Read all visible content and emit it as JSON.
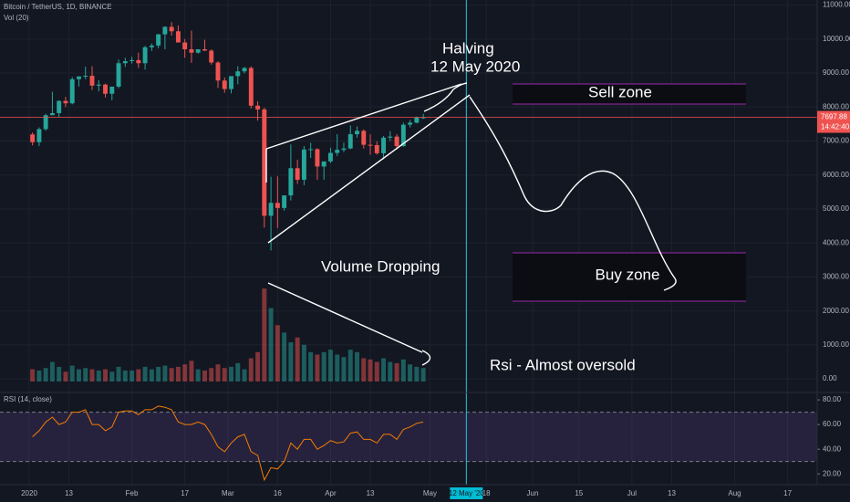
{
  "chart_data": [
    {
      "type": "candlestick",
      "title": "Bitcoin / TetherUS, 1D, BINANCE",
      "subtitle": "Vol (20)",
      "x": [
        "2020-01-01",
        "2020-01-03",
        "2020-01-05",
        "2020-01-07",
        "2020-01-09",
        "2020-01-11",
        "2020-01-13",
        "2020-01-15",
        "2020-01-17",
        "2020-01-19",
        "2020-01-21",
        "2020-01-23",
        "2020-01-25",
        "2020-01-27",
        "2020-01-29",
        "2020-01-31",
        "2020-02-02",
        "2020-02-04",
        "2020-02-06",
        "2020-02-08",
        "2020-02-10",
        "2020-02-12",
        "2020-02-14",
        "2020-02-16",
        "2020-02-18",
        "2020-02-20",
        "2020-02-22",
        "2020-02-24",
        "2020-02-26",
        "2020-02-28",
        "2020-03-01",
        "2020-03-03",
        "2020-03-05",
        "2020-03-07",
        "2020-03-09",
        "2020-03-11",
        "2020-03-13",
        "2020-03-15",
        "2020-03-17",
        "2020-03-19",
        "2020-03-21",
        "2020-03-23",
        "2020-03-25",
        "2020-03-27",
        "2020-03-29",
        "2020-03-31",
        "2020-04-02",
        "2020-04-04",
        "2020-04-06",
        "2020-04-08",
        "2020-04-10",
        "2020-04-12",
        "2020-04-14",
        "2020-04-16",
        "2020-04-18",
        "2020-04-20",
        "2020-04-22",
        "2020-04-24",
        "2020-04-26",
        "2020-04-28"
      ],
      "open": [
        7195,
        6965,
        7350,
        7760,
        7820,
        8180,
        8110,
        8820,
        8900,
        8920,
        8630,
        8660,
        8390,
        8600,
        9290,
        9350,
        9380,
        9290,
        9760,
        9810,
        10140,
        10360,
        10230,
        9900,
        9700,
        9600,
        9700,
        9660,
        9310,
        8780,
        8530,
        8910,
        9050,
        9150,
        8040,
        7930,
        4800,
        5180,
        5030,
        5400,
        6200,
        5860,
        6750,
        6760,
        6250,
        6400,
        6650,
        6740,
        6780,
        7200,
        7300,
        6890,
        6880,
        6640,
        7100,
        7130,
        6850,
        7480,
        7540,
        7690
      ],
      "high": [
        7255,
        7400,
        7800,
        8450,
        8200,
        8300,
        8880,
        8900,
        9190,
        9200,
        8790,
        8690,
        8570,
        9400,
        9450,
        9480,
        9600,
        9800,
        9870,
        10150,
        10380,
        10500,
        10400,
        10000,
        10250,
        9700,
        9980,
        9700,
        9350,
        8870,
        8800,
        9200,
        9180,
        9200,
        8170,
        7980,
        5950,
        5960,
        5400,
        6900,
        6450,
        6850,
        6950,
        6790,
        6350,
        6800,
        7200,
        6950,
        7460,
        7430,
        7340,
        7200,
        6990,
        7150,
        7290,
        7200,
        7540,
        7620,
        7720,
        7800
      ],
      "low": [
        6870,
        6850,
        7300,
        7760,
        7700,
        8000,
        8080,
        8600,
        8820,
        8500,
        8460,
        8280,
        8200,
        8550,
        9180,
        9280,
        9150,
        9100,
        9650,
        9730,
        9700,
        10100,
        9950,
        9450,
        9300,
        9570,
        9650,
        9250,
        8560,
        8420,
        8400,
        8670,
        8990,
        7960,
        7600,
        4450,
        3780,
        4440,
        4950,
        5250,
        5740,
        5700,
        6500,
        5860,
        5860,
        6350,
        6560,
        6670,
        6760,
        7100,
        6780,
        6600,
        6600,
        6460,
        7000,
        6750,
        6830,
        7400,
        7520,
        7650
      ],
      "close": [
        6965,
        7350,
        7760,
        7820,
        8180,
        8110,
        8820,
        8900,
        8920,
        8630,
        8660,
        8390,
        8600,
        9290,
        9350,
        9380,
        9290,
        9760,
        9810,
        10140,
        10360,
        10230,
        9900,
        9700,
        9600,
        9700,
        9660,
        9310,
        8780,
        8530,
        8910,
        9050,
        9150,
        8040,
        7930,
        4800,
        5180,
        5030,
        5400,
        6200,
        5860,
        6750,
        6760,
        6250,
        6400,
        6650,
        6740,
        6780,
        7200,
        7300,
        6890,
        6880,
        6640,
        7100,
        7130,
        6850,
        7480,
        7540,
        7690,
        7697.88
      ],
      "volume": [
        50000,
        45000,
        55000,
        80000,
        60000,
        40000,
        65000,
        50000,
        55000,
        50000,
        45000,
        50000,
        40000,
        60000,
        45000,
        45000,
        50000,
        60000,
        50000,
        60000,
        65000,
        55000,
        60000,
        70000,
        85000,
        50000,
        45000,
        55000,
        70000,
        55000,
        60000,
        75000,
        50000,
        95000,
        120000,
        380000,
        300000,
        230000,
        200000,
        160000,
        180000,
        150000,
        120000,
        110000,
        120000,
        130000,
        110000,
        100000,
        130000,
        120000,
        95000,
        90000,
        80000,
        95000,
        80000,
        75000,
        90000,
        70000,
        60000,
        55000
      ],
      "up_color": "#26a69a",
      "down_color": "#ef5350",
      "last_price": 7697.88,
      "countdown": "14:42:40",
      "xlim": [
        "2020-01-01",
        "2020-08-24"
      ],
      "xticks": [
        {
          "value": "2020-01-01",
          "label": "2020"
        },
        {
          "value": "2020-01-13",
          "label": "13"
        },
        {
          "value": "2020-02-01",
          "label": "Feb"
        },
        {
          "value": "2020-02-17",
          "label": "17"
        },
        {
          "value": "2020-03-01",
          "label": "Mar"
        },
        {
          "value": "2020-03-16",
          "label": "16"
        },
        {
          "value": "2020-04-01",
          "label": "Apr"
        },
        {
          "value": "2020-04-13",
          "label": "13"
        },
        {
          "value": "2020-05-01",
          "label": "May"
        },
        {
          "value": "2020-05-18",
          "label": "18"
        },
        {
          "value": "2020-06-01",
          "label": "Jun"
        },
        {
          "value": "2020-06-15",
          "label": "15"
        },
        {
          "value": "2020-07-01",
          "label": "Jul"
        },
        {
          "value": "2020-07-13",
          "label": "13"
        },
        {
          "value": "2020-08-01",
          "label": "Aug"
        },
        {
          "value": "2020-08-17",
          "label": "17"
        }
      ],
      "highlight": {
        "value": "2020-05-12",
        "label": "12 May '20"
      },
      "ylim": [
        -400,
        11150
      ],
      "yticks": [
        {
          "value": 0,
          "label": "0.00"
        },
        {
          "value": 1000,
          "label": "1000.00"
        },
        {
          "value": 2000,
          "label": "2000.00"
        },
        {
          "value": 3000,
          "label": "3000.00"
        },
        {
          "value": 4000,
          "label": "4000.00"
        },
        {
          "value": 5000,
          "label": "5000.00"
        },
        {
          "value": 6000,
          "label": "6000.00"
        },
        {
          "value": 7000,
          "label": "7000.00"
        },
        {
          "value": 8000,
          "label": "8000.00"
        },
        {
          "value": 9000,
          "label": "9000.00"
        },
        {
          "value": 10000,
          "label": "10000.00"
        },
        {
          "value": 11000,
          "label": "11000.00"
        }
      ],
      "volume_ylim": [
        0,
        440000
      ],
      "grid": true,
      "annotations": {
        "halving": "Halving",
        "halving_date": "12 May 2020",
        "sell": "Sell zone",
        "buy": "Buy zone",
        "volume": "Volume Dropping",
        "rsi": "Rsi - Almost oversold"
      }
    },
    {
      "type": "line",
      "title": "RSI (14, close)",
      "values": [
        50,
        55,
        62,
        66,
        60,
        62,
        70,
        70,
        72,
        60,
        60,
        55,
        58,
        70,
        71,
        71,
        68,
        72,
        72,
        75,
        74,
        72,
        62,
        60,
        60,
        62,
        60,
        52,
        42,
        38,
        45,
        50,
        52,
        38,
        35,
        15,
        25,
        24,
        30,
        45,
        40,
        48,
        48,
        40,
        43,
        47,
        45,
        46,
        53,
        54,
        48,
        48,
        45,
        52,
        52,
        48,
        56,
        58,
        61,
        62
      ],
      "color": "#f57c00",
      "band": [
        30,
        70
      ],
      "ylim": [
        12,
        86
      ],
      "yticks": [
        {
          "value": 20,
          "label": "20.00"
        },
        {
          "value": 40,
          "label": "40.00"
        },
        {
          "value": 60,
          "label": "60.00"
        },
        {
          "value": 80,
          "label": "80.00"
        }
      ]
    }
  ]
}
